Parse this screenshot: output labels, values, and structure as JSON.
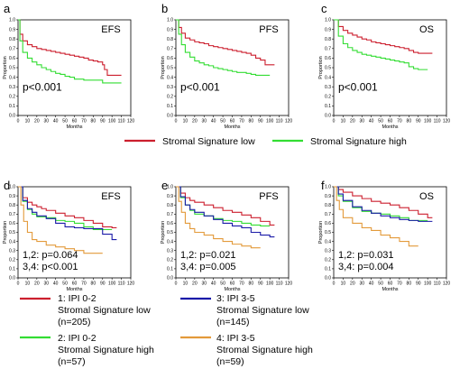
{
  "colors": {
    "stromal_low": "#cc1f2e",
    "stromal_high": "#33dd33",
    "ipi1": "#cc1f2e",
    "ipi2": "#33dd33",
    "ipi3": "#1a1aa8",
    "ipi4": "#e39a3a"
  },
  "legend_top": {
    "low": "Stromal  Signature  low",
    "high": "Stromal  Signature  high"
  },
  "legend_bottom": [
    {
      "lines": [
        "1: IPI 0-2",
        "Stromal  Signature  low",
        "(n=205)"
      ],
      "color_key": "ipi1"
    },
    {
      "lines": [
        "2: IPI 0-2",
        "Stromal  Signature  high",
        "(n=57)"
      ],
      "color_key": "ipi2"
    },
    {
      "lines": [
        "3: IPI 3-5",
        "Stromal  Signature  low",
        "(n=145)"
      ],
      "color_key": "ipi3"
    },
    {
      "lines": [
        "4: IPI 3-5",
        "Stromal  Signature  high",
        "(n=59)"
      ],
      "color_key": "ipi4"
    }
  ],
  "chart_data": [
    {
      "panel": "a",
      "type": "line",
      "endpoint": "EFS",
      "xlabel": "Months",
      "ylabel": "Proportion",
      "xlim": [
        0,
        120
      ],
      "ylim": [
        0,
        1.0
      ],
      "xticks": [
        0,
        10,
        20,
        30,
        40,
        50,
        60,
        70,
        80,
        90,
        100,
        110,
        120
      ],
      "yticks": [
        0,
        0.1,
        0.2,
        0.3,
        0.4,
        0.5,
        0.6,
        0.7,
        0.8,
        0.9,
        1.0
      ],
      "annotations": [
        "p<0.001"
      ],
      "series": [
        {
          "name": "Stromal  Signature  low",
          "color_key": "stromal_low",
          "x": [
            0,
            2,
            5,
            10,
            15,
            20,
            25,
            30,
            35,
            40,
            45,
            50,
            55,
            60,
            65,
            70,
            75,
            80,
            85,
            90,
            92,
            95,
            100,
            105,
            110
          ],
          "y": [
            1.0,
            0.85,
            0.78,
            0.74,
            0.72,
            0.7,
            0.69,
            0.68,
            0.67,
            0.66,
            0.65,
            0.64,
            0.63,
            0.62,
            0.61,
            0.6,
            0.58,
            0.57,
            0.56,
            0.53,
            0.48,
            0.42,
            0.42,
            0.42,
            0.42
          ]
        },
        {
          "name": "Stromal  Signature  high",
          "color_key": "stromal_high",
          "x": [
            0,
            2,
            5,
            10,
            15,
            20,
            25,
            30,
            35,
            40,
            45,
            50,
            55,
            60,
            65,
            70,
            75,
            80,
            85,
            90,
            95,
            100,
            110
          ],
          "y": [
            1.0,
            0.78,
            0.66,
            0.6,
            0.56,
            0.53,
            0.5,
            0.48,
            0.46,
            0.44,
            0.43,
            0.41,
            0.4,
            0.38,
            0.38,
            0.37,
            0.37,
            0.37,
            0.37,
            0.34,
            0.34,
            0.34,
            0.34
          ]
        }
      ]
    },
    {
      "panel": "b",
      "type": "line",
      "endpoint": "PFS",
      "xlabel": "Months",
      "ylabel": "Proportion",
      "xlim": [
        0,
        120
      ],
      "ylim": [
        0,
        1.0
      ],
      "xticks": [
        0,
        10,
        20,
        30,
        40,
        50,
        60,
        70,
        80,
        90,
        100,
        110,
        120
      ],
      "yticks": [
        0,
        0.1,
        0.2,
        0.3,
        0.4,
        0.5,
        0.6,
        0.7,
        0.8,
        0.9,
        1.0
      ],
      "annotations": [
        "p<0.001"
      ],
      "series": [
        {
          "name": "Stromal  Signature  low",
          "color_key": "stromal_low",
          "x": [
            0,
            3,
            6,
            10,
            15,
            20,
            25,
            30,
            35,
            40,
            45,
            50,
            55,
            60,
            65,
            70,
            75,
            80,
            85,
            90,
            95,
            100,
            105
          ],
          "y": [
            1.0,
            0.92,
            0.86,
            0.81,
            0.79,
            0.77,
            0.76,
            0.75,
            0.73,
            0.72,
            0.71,
            0.7,
            0.69,
            0.68,
            0.67,
            0.66,
            0.65,
            0.63,
            0.6,
            0.58,
            0.53,
            0.53,
            0.53
          ]
        },
        {
          "name": "Stromal  Signature  high",
          "color_key": "stromal_high",
          "x": [
            0,
            3,
            6,
            10,
            15,
            20,
            25,
            30,
            35,
            40,
            45,
            50,
            55,
            60,
            65,
            70,
            75,
            80,
            85,
            90,
            95,
            100
          ],
          "y": [
            1.0,
            0.85,
            0.74,
            0.66,
            0.61,
            0.57,
            0.55,
            0.53,
            0.52,
            0.5,
            0.49,
            0.48,
            0.47,
            0.46,
            0.45,
            0.45,
            0.44,
            0.43,
            0.42,
            0.42,
            0.42,
            0.42
          ]
        }
      ]
    },
    {
      "panel": "c",
      "type": "line",
      "endpoint": "OS",
      "xlabel": "Months",
      "ylabel": "Proportion",
      "xlim": [
        0,
        120
      ],
      "ylim": [
        0,
        1.0
      ],
      "xticks": [
        0,
        10,
        20,
        30,
        40,
        50,
        60,
        70,
        80,
        90,
        100,
        110,
        120
      ],
      "yticks": [
        0,
        0.1,
        0.2,
        0.3,
        0.4,
        0.5,
        0.6,
        0.7,
        0.8,
        0.9,
        1.0
      ],
      "annotations": [
        "p<0.001"
      ],
      "series": [
        {
          "name": "Stromal  Signature  low",
          "color_key": "stromal_low",
          "x": [
            0,
            5,
            10,
            15,
            20,
            25,
            30,
            35,
            40,
            45,
            50,
            55,
            60,
            65,
            70,
            75,
            80,
            85,
            90,
            95,
            100,
            105
          ],
          "y": [
            1.0,
            0.93,
            0.89,
            0.86,
            0.84,
            0.82,
            0.8,
            0.79,
            0.77,
            0.76,
            0.75,
            0.74,
            0.73,
            0.72,
            0.71,
            0.7,
            0.68,
            0.66,
            0.65,
            0.65,
            0.65,
            0.65
          ]
        },
        {
          "name": "Stromal  Signature  high",
          "color_key": "stromal_high",
          "x": [
            0,
            5,
            10,
            15,
            20,
            25,
            30,
            35,
            40,
            45,
            50,
            55,
            60,
            65,
            70,
            75,
            80,
            85,
            90,
            95,
            100
          ],
          "y": [
            1.0,
            0.83,
            0.75,
            0.71,
            0.68,
            0.66,
            0.64,
            0.63,
            0.62,
            0.61,
            0.6,
            0.59,
            0.58,
            0.57,
            0.56,
            0.55,
            0.51,
            0.49,
            0.48,
            0.48,
            0.48
          ]
        }
      ]
    },
    {
      "panel": "d",
      "type": "line",
      "endpoint": "EFS",
      "xlabel": "Months",
      "ylabel": "Proportion",
      "xlim": [
        0,
        120
      ],
      "ylim": [
        0,
        1.0
      ],
      "xticks": [
        0,
        10,
        20,
        30,
        40,
        50,
        60,
        70,
        80,
        90,
        100,
        110,
        120
      ],
      "yticks": [
        0,
        0.1,
        0.2,
        0.3,
        0.4,
        0.5,
        0.6,
        0.7,
        0.8,
        0.9,
        1.0
      ],
      "annotations": [
        "1,2: p=0.064",
        "3,4: p<0.001"
      ],
      "series": [
        {
          "name": "1",
          "color_key": "ipi1",
          "x": [
            0,
            5,
            10,
            15,
            20,
            25,
            30,
            40,
            50,
            60,
            70,
            80,
            90,
            100,
            105
          ],
          "y": [
            1.0,
            0.88,
            0.83,
            0.8,
            0.78,
            0.76,
            0.74,
            0.71,
            0.68,
            0.66,
            0.63,
            0.6,
            0.56,
            0.55,
            0.55
          ]
        },
        {
          "name": "2",
          "color_key": "ipi2",
          "x": [
            0,
            5,
            10,
            15,
            20,
            30,
            40,
            50,
            60,
            70,
            80,
            90,
            100
          ],
          "y": [
            1.0,
            0.84,
            0.75,
            0.7,
            0.67,
            0.66,
            0.63,
            0.62,
            0.6,
            0.56,
            0.53,
            0.53,
            0.53
          ]
        },
        {
          "name": "3",
          "color_key": "ipi3",
          "x": [
            0,
            5,
            10,
            15,
            20,
            30,
            40,
            50,
            60,
            70,
            80,
            90,
            100,
            105
          ],
          "y": [
            1.0,
            0.85,
            0.76,
            0.72,
            0.68,
            0.65,
            0.6,
            0.56,
            0.55,
            0.54,
            0.54,
            0.48,
            0.42,
            0.42
          ]
        },
        {
          "name": "4",
          "color_key": "ipi4",
          "x": [
            0,
            3,
            6,
            10,
            15,
            20,
            30,
            40,
            50,
            60,
            70,
            80,
            90
          ],
          "y": [
            1.0,
            0.8,
            0.62,
            0.5,
            0.42,
            0.4,
            0.36,
            0.34,
            0.32,
            0.3,
            0.27,
            0.27,
            0.27
          ]
        }
      ]
    },
    {
      "panel": "e",
      "type": "line",
      "endpoint": "PFS",
      "xlabel": "Months",
      "ylabel": "Proportion",
      "xlim": [
        0,
        120
      ],
      "ylim": [
        0,
        1.0
      ],
      "xticks": [
        0,
        10,
        20,
        30,
        40,
        50,
        60,
        70,
        80,
        90,
        100,
        110,
        120
      ],
      "yticks": [
        0,
        0.1,
        0.2,
        0.3,
        0.4,
        0.5,
        0.6,
        0.7,
        0.8,
        0.9,
        1.0
      ],
      "annotations": [
        "1,2: p=0.021",
        "3,4: p=0.005"
      ],
      "series": [
        {
          "name": "1",
          "color_key": "ipi1",
          "x": [
            0,
            5,
            10,
            15,
            20,
            30,
            40,
            50,
            60,
            70,
            80,
            90,
            100,
            105
          ],
          "y": [
            1.0,
            0.93,
            0.88,
            0.85,
            0.83,
            0.8,
            0.77,
            0.74,
            0.72,
            0.69,
            0.66,
            0.62,
            0.58,
            0.58
          ]
        },
        {
          "name": "2",
          "color_key": "ipi2",
          "x": [
            0,
            5,
            10,
            15,
            20,
            30,
            40,
            50,
            60,
            70,
            80,
            90,
            100
          ],
          "y": [
            1.0,
            0.88,
            0.8,
            0.74,
            0.7,
            0.68,
            0.65,
            0.63,
            0.62,
            0.6,
            0.58,
            0.57,
            0.57
          ]
        },
        {
          "name": "3",
          "color_key": "ipi3",
          "x": [
            0,
            5,
            10,
            15,
            20,
            30,
            40,
            50,
            60,
            70,
            80,
            90,
            100,
            105
          ],
          "y": [
            1.0,
            0.89,
            0.8,
            0.75,
            0.72,
            0.68,
            0.64,
            0.6,
            0.57,
            0.55,
            0.5,
            0.47,
            0.45,
            0.45
          ]
        },
        {
          "name": "4",
          "color_key": "ipi4",
          "x": [
            0,
            3,
            6,
            10,
            15,
            20,
            30,
            40,
            50,
            60,
            70,
            80,
            90
          ],
          "y": [
            1.0,
            0.84,
            0.72,
            0.6,
            0.54,
            0.5,
            0.47,
            0.43,
            0.4,
            0.37,
            0.35,
            0.33,
            0.33
          ]
        }
      ]
    },
    {
      "panel": "f",
      "type": "line",
      "endpoint": "OS",
      "xlabel": "Months",
      "ylabel": "Proportion",
      "xlim": [
        0,
        120
      ],
      "ylim": [
        0,
        1.0
      ],
      "xticks": [
        0,
        10,
        20,
        30,
        40,
        50,
        60,
        70,
        80,
        90,
        100,
        110,
        120
      ],
      "yticks": [
        0,
        0.1,
        0.2,
        0.3,
        0.4,
        0.5,
        0.6,
        0.7,
        0.8,
        0.9,
        1.0
      ],
      "annotations": [
        "1,2: p=0.031",
        "3,4: p=0.004"
      ],
      "series": [
        {
          "name": "1",
          "color_key": "ipi1",
          "x": [
            0,
            5,
            10,
            20,
            30,
            40,
            50,
            60,
            70,
            80,
            90,
            100,
            105
          ],
          "y": [
            1.0,
            0.97,
            0.94,
            0.9,
            0.87,
            0.84,
            0.82,
            0.8,
            0.77,
            0.74,
            0.7,
            0.66,
            0.66
          ]
        },
        {
          "name": "2",
          "color_key": "ipi2",
          "x": [
            0,
            5,
            10,
            20,
            30,
            40,
            50,
            60,
            70,
            80,
            90,
            100
          ],
          "y": [
            1.0,
            0.9,
            0.84,
            0.77,
            0.73,
            0.71,
            0.7,
            0.68,
            0.66,
            0.63,
            0.63,
            0.63
          ]
        },
        {
          "name": "3",
          "color_key": "ipi3",
          "x": [
            0,
            5,
            10,
            20,
            30,
            40,
            50,
            60,
            70,
            80,
            90,
            100,
            105
          ],
          "y": [
            1.0,
            0.92,
            0.85,
            0.78,
            0.74,
            0.71,
            0.68,
            0.66,
            0.64,
            0.63,
            0.62,
            0.62,
            0.62
          ]
        },
        {
          "name": "4",
          "color_key": "ipi4",
          "x": [
            0,
            3,
            6,
            10,
            20,
            30,
            40,
            50,
            60,
            70,
            80,
            90
          ],
          "y": [
            1.0,
            0.85,
            0.75,
            0.66,
            0.6,
            0.55,
            0.52,
            0.47,
            0.44,
            0.4,
            0.35,
            0.35
          ]
        }
      ]
    }
  ]
}
